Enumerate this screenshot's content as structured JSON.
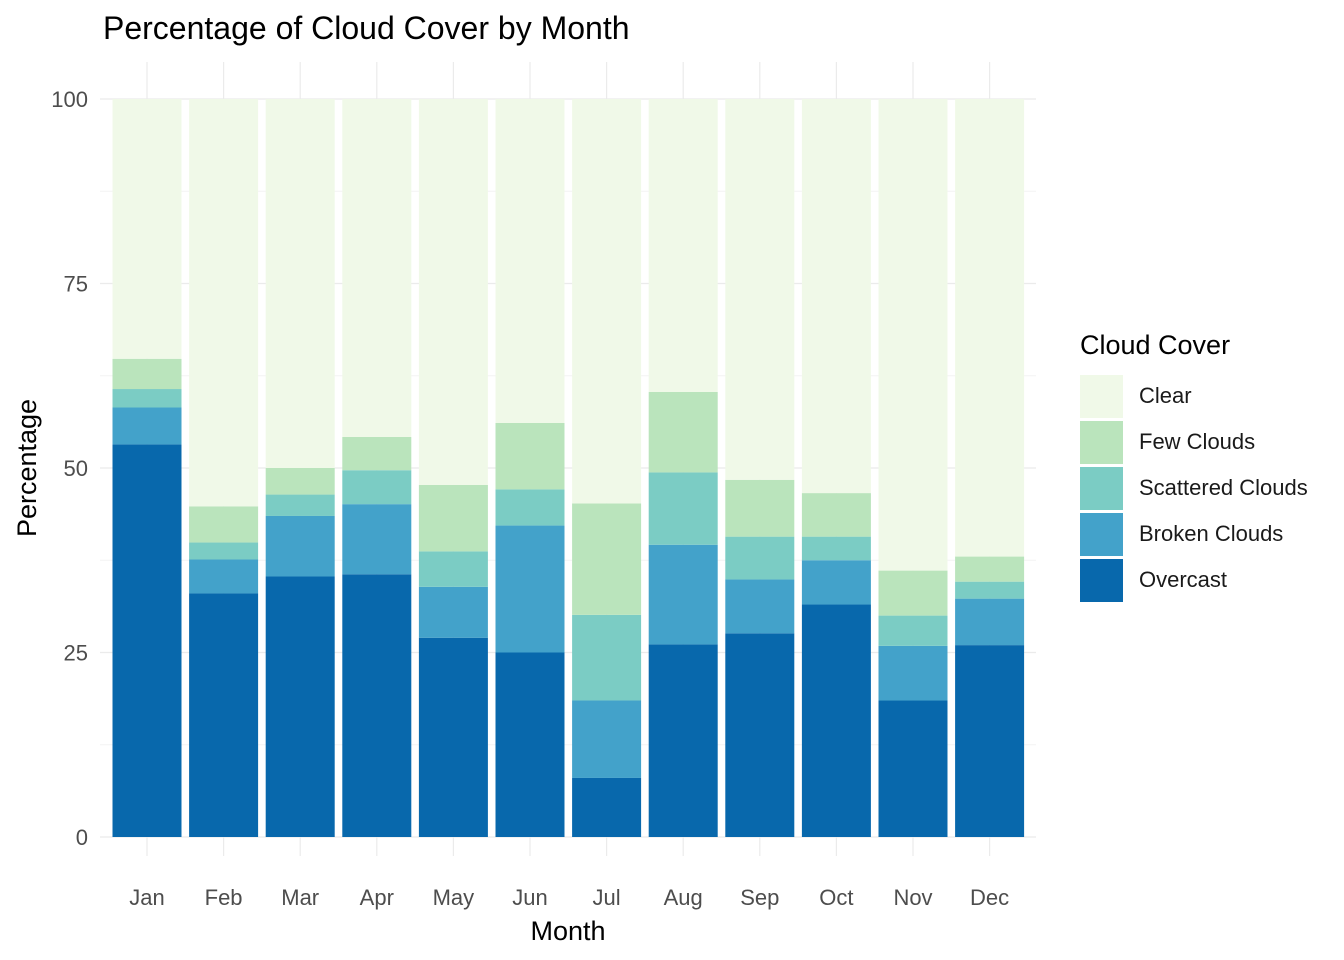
{
  "chart_data": {
    "type": "bar",
    "stacked": true,
    "title": "Percentage of Cloud Cover by Month",
    "xlabel": "Month",
    "ylabel": "Percentage",
    "ylim": [
      0,
      100
    ],
    "yticks": [
      0,
      25,
      50,
      75,
      100
    ],
    "categories": [
      "Jan",
      "Feb",
      "Mar",
      "Apr",
      "May",
      "Jun",
      "Jul",
      "Aug",
      "Sep",
      "Oct",
      "Nov",
      "Dec"
    ],
    "legend_title": "Cloud Cover",
    "legend_position": "right",
    "grid": true,
    "series": [
      {
        "name": "Overcast",
        "color": "#0868AC",
        "values": [
          53.2,
          33.0,
          35.3,
          35.6,
          27.0,
          25.0,
          8.0,
          26.1,
          27.6,
          31.5,
          18.5,
          26.0
        ]
      },
      {
        "name": "Broken Clouds",
        "color": "#43A2CA",
        "values": [
          5.0,
          4.6,
          8.2,
          9.5,
          6.9,
          17.2,
          10.5,
          13.5,
          7.3,
          6.0,
          7.4,
          6.3
        ]
      },
      {
        "name": "Scattered Clouds",
        "color": "#7BCCC4",
        "values": [
          2.5,
          2.3,
          2.9,
          4.6,
          4.8,
          4.9,
          11.6,
          9.8,
          5.8,
          3.2,
          4.1,
          2.3
        ]
      },
      {
        "name": "Few Clouds",
        "color": "#BAE4BC",
        "values": [
          4.1,
          4.9,
          3.6,
          4.5,
          9.0,
          9.0,
          15.1,
          10.9,
          7.7,
          5.9,
          6.1,
          3.4
        ]
      },
      {
        "name": "Clear",
        "color": "#F0F9E8",
        "values": [
          35.2,
          55.2,
          50.0,
          45.8,
          52.3,
          43.9,
          54.8,
          39.7,
          51.6,
          53.4,
          63.9,
          62.0
        ]
      }
    ]
  }
}
